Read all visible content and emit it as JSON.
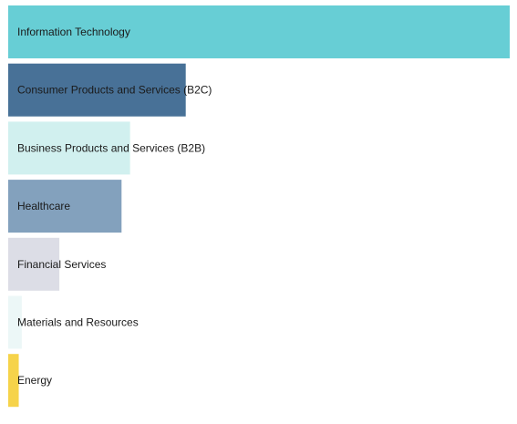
{
  "chart_data": {
    "type": "bar",
    "orientation": "horizontal",
    "categories": [
      "Information Technology",
      "Consumer Products and Services (B2C)",
      "Business Products and Services (B2B)",
      "Healthcare",
      "Financial Services",
      "Materials and Resources",
      "Energy"
    ],
    "values": [
      100,
      35.4,
      24.3,
      22.6,
      10.2,
      2.7,
      2.1
    ],
    "colors": [
      "#67ced5",
      "#487197",
      "#d1f0ef",
      "#83a1bd",
      "#dcdde6",
      "#ecf7f7",
      "#f6d34a"
    ],
    "title": "",
    "xlabel": "",
    "ylabel": "",
    "xlim": [
      0,
      100
    ],
    "grid": false,
    "legend": "none"
  }
}
